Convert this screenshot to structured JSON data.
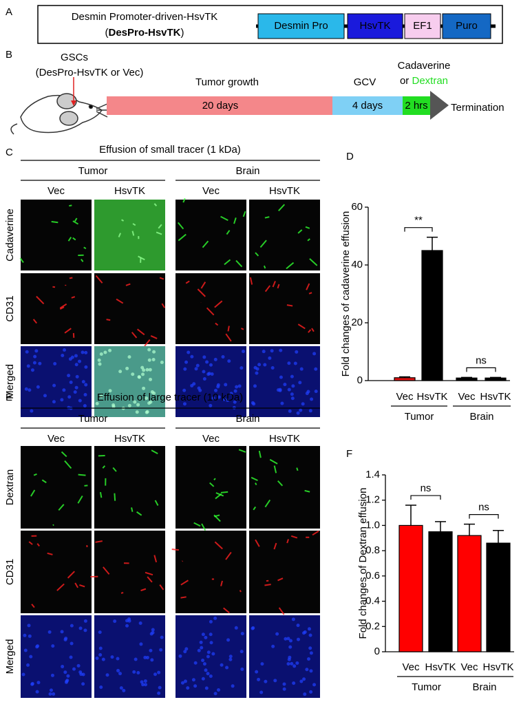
{
  "panel_labels": [
    "A",
    "B",
    "C",
    "D",
    "E",
    "F"
  ],
  "construct": {
    "name": "Desmin Promoter-driven-HsvTK",
    "abbrev_open": "(",
    "abbrev": "DesPro-HsvTK",
    "abbrev_close": ")",
    "segments": [
      "Desmin Pro",
      "HsvTK",
      "EF1",
      "Puro"
    ]
  },
  "timeline": {
    "cells": "GSCs",
    "cells_detail": "(DesPro-HsvTK or Vec)",
    "phases": [
      {
        "label": "Tumor growth",
        "duration": "20 days"
      },
      {
        "label": "GCV",
        "duration": "4 days"
      }
    ],
    "tracer_a": "Cadaverine",
    "tracer_or": "or",
    "tracer_b": "Dextran",
    "tracer_duration": "2 hrs",
    "end": "Termination"
  },
  "panel_c": {
    "title_pre": "Effusion of small tracer (",
    "title_num": "1",
    "title_post": " kDa)",
    "groups": [
      "Tumor",
      "Brain"
    ],
    "columns": [
      "Vec",
      "HsvTK",
      "Vec",
      "HsvTK"
    ],
    "rows": [
      "Cadaverine",
      "CD31",
      "Merged"
    ]
  },
  "panel_e": {
    "title_pre": "Effusion of large tracer (",
    "title_num": "10",
    "title_post": " kDa)",
    "groups": [
      "Tumor",
      "Brain"
    ],
    "columns": [
      "Vec",
      "HsvTK",
      "Vec",
      "HsvTK"
    ],
    "rows": [
      "Dextran",
      "CD31",
      "Merged"
    ]
  },
  "chart_data": [
    {
      "type": "bar",
      "y_label": "Fold changes of cadaverine  effusion",
      "categories": [
        "Vec",
        "HsvTK",
        "Vec",
        "HsvTK"
      ],
      "groups": [
        "Tumor",
        "Brain"
      ],
      "values": [
        1.0,
        45,
        0.9,
        0.9
      ],
      "errors": [
        0.3,
        4.6,
        0.2,
        0.2
      ],
      "colors": [
        "#e01010",
        "#000000",
        "#000000",
        "#000000"
      ],
      "ylim": [
        0,
        60
      ],
      "yticks": [
        0,
        20,
        40,
        60
      ],
      "annotations": [
        "**",
        "ns"
      ]
    },
    {
      "type": "bar",
      "y_label": "Fold changes of Dextran  effusion",
      "categories": [
        "Vec",
        "HsvTK",
        "Vec",
        "HsvTK"
      ],
      "groups": [
        "Tumor",
        "Brain"
      ],
      "values": [
        1.0,
        0.95,
        0.92,
        0.86
      ],
      "errors": [
        0.16,
        0.08,
        0.09,
        0.1
      ],
      "colors": [
        "#ff0000",
        "#000000",
        "#ff0000",
        "#000000"
      ],
      "ylim": [
        0,
        1.4
      ],
      "yticks": [
        0,
        0.2,
        0.4,
        0.6,
        0.8,
        {
          "value": 1,
          "label": "1.0"
        },
        1.2,
        1.4
      ],
      "annotations": [
        "ns",
        "ns"
      ]
    }
  ]
}
